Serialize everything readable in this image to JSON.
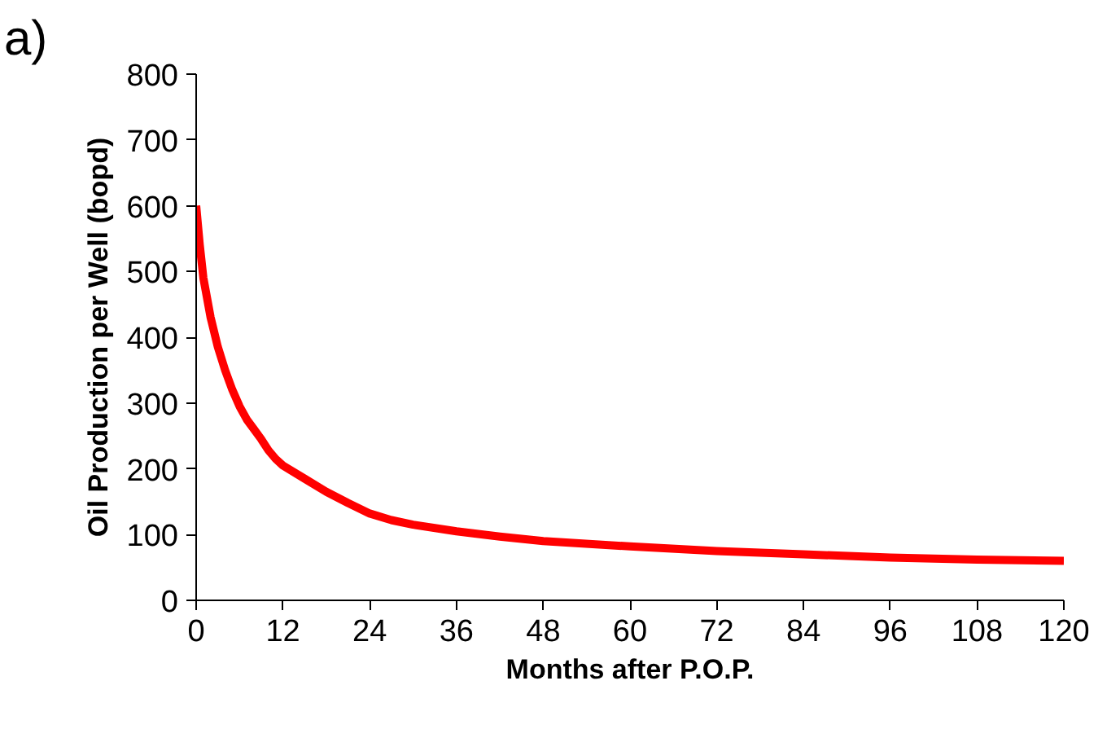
{
  "chart_data": {
    "type": "line",
    "xlabel": "Months after P.O.P.",
    "ylabel": "Oil Production per Well (bopd)",
    "annotations": [
      "a)"
    ],
    "x": [
      0,
      0.5,
      1,
      2,
      3,
      4,
      5,
      6,
      7,
      8,
      9,
      10,
      11,
      12,
      15,
      18,
      21,
      24,
      27,
      30,
      36,
      42,
      48,
      60,
      72,
      84,
      96,
      108,
      120
    ],
    "series": [
      {
        "color": "#ff0000",
        "values": [
          600,
          540,
          490,
          430,
          385,
          350,
          320,
          295,
          275,
          260,
          245,
          228,
          215,
          205,
          185,
          165,
          148,
          132,
          122,
          115,
          105,
          97,
          90,
          82,
          75,
          70,
          65,
          62,
          60
        ]
      }
    ],
    "xlim": [
      0,
      120
    ],
    "xticks": [
      0,
      12,
      24,
      36,
      48,
      60,
      72,
      84,
      96,
      108,
      120
    ],
    "ylim": [
      0,
      800
    ],
    "yticks": [
      0,
      100,
      200,
      300,
      400,
      500,
      600,
      700,
      800
    ],
    "grid": false,
    "marker": "none",
    "line_style": "solid"
  }
}
